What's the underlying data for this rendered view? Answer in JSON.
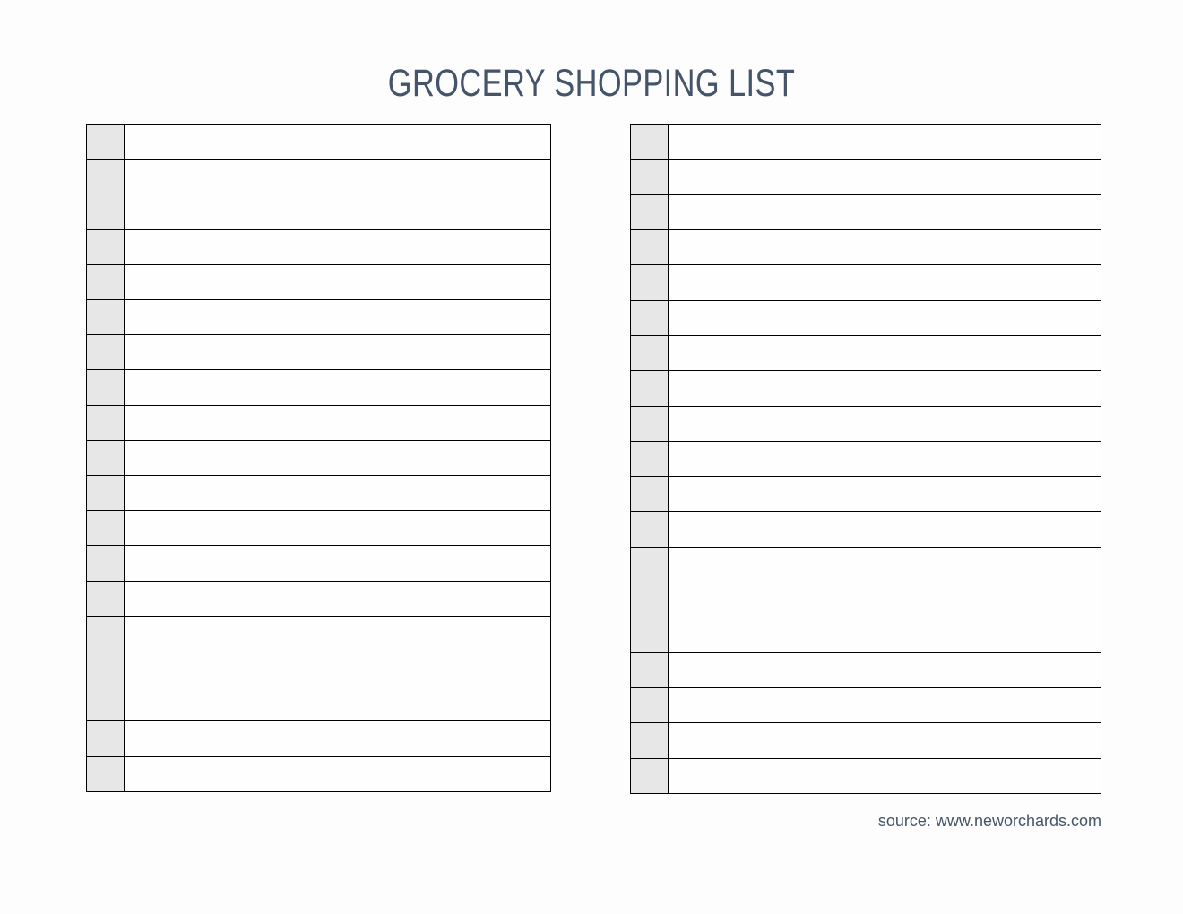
{
  "header": {
    "title": "GROCERY SHOPPING LIST"
  },
  "lists": {
    "left": {
      "row_count": 19,
      "row_item_text": ""
    },
    "right": {
      "row_count": 19,
      "row_item_text": ""
    }
  },
  "footer": {
    "source_text": "source: www.neworchards.com"
  },
  "colors": {
    "page_background": "#fdfdfd",
    "accent_text": "#44546a",
    "checkbox_cell_fill": "#e7e7e7",
    "table_border": "#000000"
  }
}
